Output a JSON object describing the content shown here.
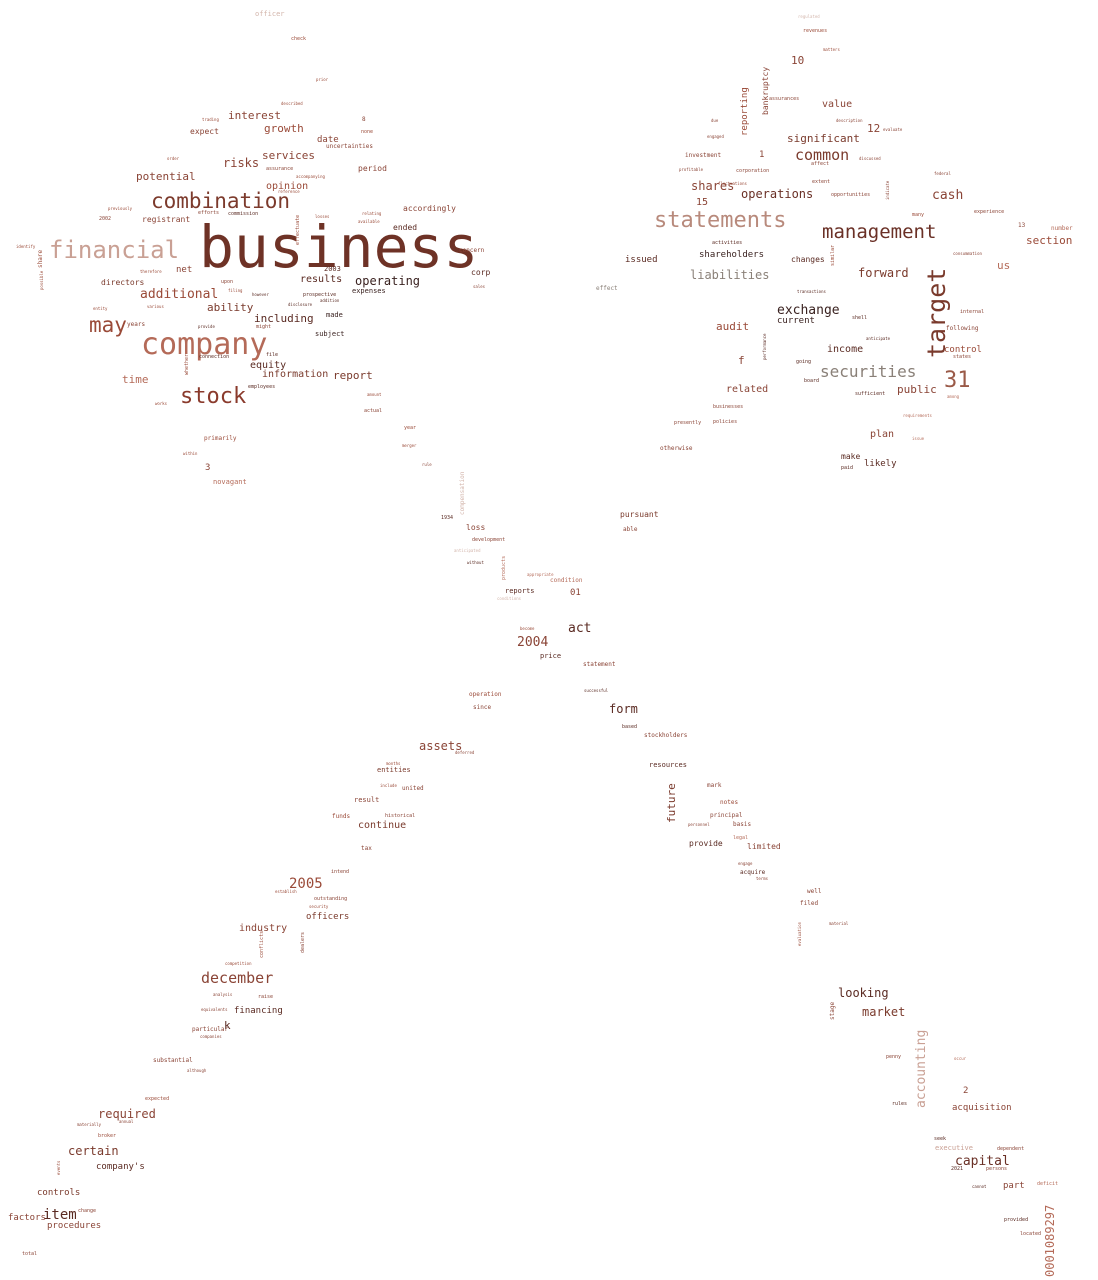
{
  "words": [
    {
      "text": "business",
      "color": "#6e3226"
    },
    {
      "text": "company",
      "color": "#b46a58"
    },
    {
      "text": "combination",
      "color": "#7c3a2c"
    },
    {
      "text": "financial",
      "color": "#c9a094"
    },
    {
      "text": "stock",
      "color": "#8a3a2c"
    },
    {
      "text": "may",
      "color": "#9a4a38"
    },
    {
      "text": "statements",
      "color": "#b88a7c"
    },
    {
      "text": "management",
      "color": "#6a3026"
    },
    {
      "text": "target",
      "color": "#7a3a2c"
    },
    {
      "text": "securities",
      "color": "#8a8078"
    },
    {
      "text": "31",
      "color": "#9a5a48"
    },
    {
      "text": "common",
      "color": "#7a3a2c"
    },
    {
      "text": "cash",
      "color": "#8a4436"
    },
    {
      "text": "additional",
      "color": "#9a4a38"
    },
    {
      "text": "operations",
      "color": "#6a3026"
    },
    {
      "text": "exchange",
      "color": "#3a2220"
    },
    {
      "text": "operating",
      "color": "#3a2220"
    },
    {
      "text": "december",
      "color": "#8a4436"
    },
    {
      "text": "2005",
      "color": "#9a4a38"
    },
    {
      "text": "item",
      "color": "#5a2a22"
    },
    {
      "text": "accounting",
      "color": "#c9a094"
    },
    {
      "text": "capital",
      "color": "#6a3026"
    },
    {
      "text": "0001089297",
      "color": "#b46a58"
    },
    {
      "text": "2004",
      "color": "#8a4436"
    },
    {
      "text": "act",
      "color": "#5a2a22"
    },
    {
      "text": "form",
      "color": "#5a2a22"
    },
    {
      "text": "market",
      "color": "#7a3a2c"
    },
    {
      "text": "looking",
      "color": "#5a2a22"
    },
    {
      "text": "certain",
      "color": "#7a3a2c"
    },
    {
      "text": "required",
      "color": "#8a4436"
    },
    {
      "text": "assets",
      "color": "#8a4436"
    },
    {
      "text": "future",
      "color": "#7a3a2c"
    },
    {
      "text": "liabilities",
      "color": "#8a8078"
    },
    {
      "text": "shares",
      "color": "#8a4436"
    },
    {
      "text": "forward",
      "color": "#7a3a2c"
    },
    {
      "text": "section",
      "color": "#9a4a38"
    },
    {
      "text": "interest",
      "color": "#8a4436"
    },
    {
      "text": "growth",
      "color": "#9a4a38"
    },
    {
      "text": "risks",
      "color": "#8a4436"
    },
    {
      "text": "services",
      "color": "#8a4436"
    },
    {
      "text": "potential",
      "color": "#8a4436"
    },
    {
      "text": "opinion",
      "color": "#9a4a38"
    },
    {
      "text": "time",
      "color": "#b46a58"
    },
    {
      "text": "ability",
      "color": "#7a3a2c"
    },
    {
      "text": "including",
      "color": "#5a2a22"
    },
    {
      "text": "results",
      "color": "#5a2a22"
    },
    {
      "text": "report",
      "color": "#7a3a2c"
    },
    {
      "text": "information",
      "color": "#7a3a2c"
    },
    {
      "text": "equity",
      "color": "#5a2a22"
    },
    {
      "text": "audit",
      "color": "#9a4a38"
    },
    {
      "text": "income",
      "color": "#5a2a22"
    },
    {
      "text": "public",
      "color": "#8a4436"
    },
    {
      "text": "value",
      "color": "#8a4436"
    },
    {
      "text": "significant",
      "color": "#7a3a2c"
    },
    {
      "text": "us",
      "color": "#b46a58"
    },
    {
      "text": "plan",
      "color": "#8a4436"
    },
    {
      "text": "control",
      "color": "#9a4a38"
    },
    {
      "text": "industry",
      "color": "#8a4436"
    },
    {
      "text": "continue",
      "color": "#7a3a2c"
    },
    {
      "text": "officers",
      "color": "#7a3a2c"
    },
    {
      "text": "acquisition",
      "color": "#8a4436"
    },
    {
      "text": "part",
      "color": "#8a4436"
    },
    {
      "text": "controls",
      "color": "#7a3a2c"
    },
    {
      "text": "factors",
      "color": "#8a4436"
    },
    {
      "text": "procedures",
      "color": "#8a4436"
    },
    {
      "text": "company's",
      "color": "#5a2a22"
    },
    {
      "text": "financing",
      "color": "#5a2a22"
    },
    {
      "text": "10",
      "color": "#8a4436"
    },
    {
      "text": "12",
      "color": "#8a4436"
    },
    {
      "text": "15",
      "color": "#8a4436"
    },
    {
      "text": "bankruptcy",
      "color": "#8a4436"
    },
    {
      "text": "reporting",
      "color": "#9a4a38"
    },
    {
      "text": "shareholders",
      "color": "#3a2220"
    },
    {
      "text": "related",
      "color": "#8a4436"
    },
    {
      "text": "likely",
      "color": "#5a2a22"
    },
    {
      "text": "make",
      "color": "#5a2a22"
    },
    {
      "text": "issued",
      "color": "#5a2a22"
    },
    {
      "text": "changes",
      "color": "#5a2a22"
    },
    {
      "text": "current",
      "color": "#3a2220"
    },
    {
      "text": "directors",
      "color": "#7a3a2c"
    },
    {
      "text": "net",
      "color": "#8a4436"
    },
    {
      "text": "registrant",
      "color": "#8a4436"
    },
    {
      "text": "expect",
      "color": "#8a4436"
    },
    {
      "text": "date",
      "color": "#8a4436"
    },
    {
      "text": "period",
      "color": "#8a4436"
    },
    {
      "text": "accordingly",
      "color": "#8a4436"
    },
    {
      "text": "ended",
      "color": "#5a2a22"
    },
    {
      "text": "corp",
      "color": "#5a2a22"
    },
    {
      "text": "2003",
      "color": "#5a2a22"
    },
    {
      "text": "expenses",
      "color": "#3a2220"
    },
    {
      "text": "subject",
      "color": "#3a2220"
    },
    {
      "text": "made",
      "color": "#3a2220"
    },
    {
      "text": "novagant",
      "color": "#b46a58"
    },
    {
      "text": "loss",
      "color": "#8a4436"
    },
    {
      "text": "pursuant",
      "color": "#7a3a2c"
    },
    {
      "text": "reports",
      "color": "#5a2a22"
    },
    {
      "text": "01",
      "color": "#8a4436"
    },
    {
      "text": "price",
      "color": "#5a2a22"
    },
    {
      "text": "entities",
      "color": "#7a3a2c"
    },
    {
      "text": "result",
      "color": "#8a4436"
    },
    {
      "text": "resources",
      "color": "#5a2a22"
    },
    {
      "text": "provide",
      "color": "#5a2a22"
    },
    {
      "text": "limited",
      "color": "#8a4436"
    },
    {
      "text": "executive",
      "color": "#c9a094"
    },
    {
      "text": "uncertainties",
      "color": "#8a4436"
    },
    {
      "text": "officer",
      "color": "#d2b4aa"
    },
    {
      "text": "effect",
      "color": "#8a8078"
    },
    {
      "text": "shell",
      "color": "#5a2a22"
    },
    {
      "text": "following",
      "color": "#8a4436"
    },
    {
      "text": "internal",
      "color": "#8a4436"
    },
    {
      "text": "number",
      "color": "#b46a58"
    },
    {
      "text": "investment",
      "color": "#8a4436"
    },
    {
      "text": "corporation",
      "color": "#8a4436"
    },
    {
      "text": "basis",
      "color": "#8a4436"
    },
    {
      "text": "notes",
      "color": "#9a4a38"
    },
    {
      "text": "mark",
      "color": "#8a4436"
    },
    {
      "text": "principal",
      "color": "#8a4436"
    },
    {
      "text": "acquire",
      "color": "#5a2a22"
    },
    {
      "text": "filed",
      "color": "#8a4436"
    },
    {
      "text": "well",
      "color": "#8a4436"
    },
    {
      "text": "stage",
      "color": "#8a4436"
    },
    {
      "text": "raise",
      "color": "#8a4436"
    },
    {
      "text": "particular",
      "color": "#8a4436"
    },
    {
      "text": "substantial",
      "color": "#8a4436"
    },
    {
      "text": "united",
      "color": "#8a4436"
    },
    {
      "text": "historical",
      "color": "#8a4436"
    },
    {
      "text": "funds",
      "color": "#9a4a38"
    },
    {
      "text": "tax",
      "color": "#8a4436"
    },
    {
      "text": "intend",
      "color": "#8a4436"
    },
    {
      "text": "stockholders",
      "color": "#8a4436"
    },
    {
      "text": "since",
      "color": "#8a4436"
    },
    {
      "text": "operation",
      "color": "#9a4a38"
    },
    {
      "text": "statement",
      "color": "#8a4436"
    },
    {
      "text": "able",
      "color": "#8a4436"
    },
    {
      "text": "development",
      "color": "#8a4436"
    },
    {
      "text": "condition",
      "color": "#b46a58"
    },
    {
      "text": "primarily",
      "color": "#9a4a38"
    },
    {
      "text": "concern",
      "color": "#8a4436"
    },
    {
      "text": "years",
      "color": "#8a4436"
    },
    {
      "text": "employees",
      "color": "#5a2a22"
    },
    {
      "text": "connection",
      "color": "#5a2a22"
    },
    {
      "text": "assurance",
      "color": "#8a4436"
    },
    {
      "text": "check",
      "color": "#9a4a38"
    },
    {
      "text": "described",
      "color": "#9a4a38"
    },
    {
      "text": "prior",
      "color": "#9a4a38"
    },
    {
      "text": "none",
      "color": "#9a4a38"
    },
    {
      "text": "commission",
      "color": "#5a2a22"
    },
    {
      "text": "efforts",
      "color": "#8a4436"
    },
    {
      "text": "upon",
      "color": "#8a4436"
    },
    {
      "text": "sales",
      "color": "#8a4436"
    },
    {
      "text": "year",
      "color": "#9a4a38"
    },
    {
      "text": "actual",
      "color": "#8a4436"
    },
    {
      "text": "amount",
      "color": "#9a4a38"
    },
    {
      "text": "otherwise",
      "color": "#8a4436"
    },
    {
      "text": "presently",
      "color": "#8a4436"
    },
    {
      "text": "businesses",
      "color": "#8a4436"
    },
    {
      "text": "policies",
      "color": "#8a4436"
    },
    {
      "text": "board",
      "color": "#5a2a22"
    },
    {
      "text": "going",
      "color": "#5a2a22"
    },
    {
      "text": "sufficient",
      "color": "#5a2a22"
    },
    {
      "text": "activities",
      "color": "#5a2a22"
    },
    {
      "text": "assurances",
      "color": "#8a4436"
    },
    {
      "text": "revenues",
      "color": "#9a4a38"
    },
    {
      "text": "opportunities",
      "color": "#8a4436"
    },
    {
      "text": "experience",
      "color": "#8a4436"
    },
    {
      "text": "states",
      "color": "#8a4436"
    },
    {
      "text": "many",
      "color": "#9a4a38"
    },
    {
      "text": "seek",
      "color": "#5a2a22"
    },
    {
      "text": "persons",
      "color": "#8a4436"
    },
    {
      "text": "dependent",
      "color": "#8a4436"
    },
    {
      "text": "deficit",
      "color": "#b46a58"
    },
    {
      "text": "provided",
      "color": "#5a2a22"
    },
    {
      "text": "located",
      "color": "#8a4436"
    },
    {
      "text": "rules",
      "color": "#5a2a22"
    },
    {
      "text": "penny",
      "color": "#8a4436"
    },
    {
      "text": "change",
      "color": "#8a4436"
    },
    {
      "text": "total",
      "color": "#8a4436"
    },
    {
      "text": "broker",
      "color": "#9a4a38"
    },
    {
      "text": "expected",
      "color": "#9a4a38"
    },
    {
      "text": "dealers",
      "color": "#8a4436"
    },
    {
      "text": "outstanding",
      "color": "#8a4436"
    },
    {
      "text": "conflicts",
      "color": "#9a4a38"
    },
    {
      "text": "compensation",
      "color": "#d2b4aa"
    },
    {
      "text": "products",
      "color": "#b46a58"
    },
    {
      "text": "whether",
      "color": "#9a4a38"
    },
    {
      "text": "share",
      "color": "#9a4a38"
    },
    {
      "text": "based",
      "color": "#5a2a22"
    },
    {
      "text": "2",
      "color": "#8a4436"
    },
    {
      "text": "3",
      "color": "#8a4436"
    },
    {
      "text": "f",
      "color": "#8a4436"
    },
    {
      "text": "k",
      "color": "#5a2a22"
    },
    {
      "text": "1",
      "color": "#8a4436"
    },
    {
      "text": "8",
      "color": "#8a4436"
    },
    {
      "text": "13",
      "color": "#8a4436"
    },
    {
      "text": "2002",
      "color": "#8a4436"
    },
    {
      "text": "2021",
      "color": "#5a2a22"
    },
    {
      "text": "1934",
      "color": "#5a2a22"
    },
    {
      "text": "effectuate",
      "color": "#9a4a38"
    },
    {
      "text": "prospective",
      "color": "#5a2a22"
    },
    {
      "text": "accompanying",
      "color": "#9a4a38"
    },
    {
      "text": "available",
      "color": "#9a4a38"
    },
    {
      "text": "losses",
      "color": "#9a4a38"
    },
    {
      "text": "relating",
      "color": "#9a4a38"
    },
    {
      "text": "due",
      "color": "#8a4436"
    },
    {
      "text": "engaged",
      "color": "#8a4436"
    },
    {
      "text": "profitable",
      "color": "#8a4436"
    },
    {
      "text": "affect",
      "color": "#8a4436"
    },
    {
      "text": "extent",
      "color": "#8a4436"
    },
    {
      "text": "discussed",
      "color": "#8a4436"
    },
    {
      "text": "description",
      "color": "#8a4436"
    },
    {
      "text": "evaluate",
      "color": "#8a4436"
    },
    {
      "text": "indicate",
      "color": "#8a4436"
    },
    {
      "text": "federal",
      "color": "#8a4436"
    },
    {
      "text": "consummation",
      "color": "#8a4436"
    },
    {
      "text": "anticipate",
      "color": "#5a2a22"
    },
    {
      "text": "among",
      "color": "#b46a58"
    },
    {
      "text": "requirements",
      "color": "#b46a58"
    },
    {
      "text": "issue",
      "color": "#b46a58"
    },
    {
      "text": "similar",
      "color": "#9a4a38"
    },
    {
      "text": "transactions",
      "color": "#5a2a22"
    },
    {
      "text": "performance",
      "color": "#5a2a22"
    },
    {
      "text": "paid",
      "color": "#5a2a22"
    },
    {
      "text": "legal",
      "color": "#b46a58"
    },
    {
      "text": "engage",
      "color": "#8a4436"
    },
    {
      "text": "terms",
      "color": "#8a4436"
    },
    {
      "text": "personnel",
      "color": "#8a4436"
    },
    {
      "text": "material",
      "color": "#8a4436"
    },
    {
      "text": "evaluation",
      "color": "#9a4a38"
    },
    {
      "text": "occur",
      "color": "#b46a58"
    },
    {
      "text": "cannot",
      "color": "#5a2a22"
    },
    {
      "text": "companies",
      "color": "#8a4436"
    },
    {
      "text": "although",
      "color": "#8a4436"
    },
    {
      "text": "analysis",
      "color": "#8a4436"
    },
    {
      "text": "equivalents",
      "color": "#8a4436"
    },
    {
      "text": "materially",
      "color": "#8a4436"
    },
    {
      "text": "annual",
      "color": "#8a4436"
    },
    {
      "text": "events",
      "color": "#9a4a38"
    },
    {
      "text": "competition",
      "color": "#9a4a38"
    },
    {
      "text": "security",
      "color": "#9a4a38"
    },
    {
      "text": "establish",
      "color": "#9a4a38"
    },
    {
      "text": "deferred",
      "color": "#8a4436"
    },
    {
      "text": "months",
      "color": "#9a4a38"
    },
    {
      "text": "include",
      "color": "#9a4a38"
    },
    {
      "text": "successful",
      "color": "#5a2a22"
    },
    {
      "text": "appropriate",
      "color": "#b46a58"
    },
    {
      "text": "merger",
      "color": "#9a4a38"
    },
    {
      "text": "rule",
      "color": "#8a4436"
    },
    {
      "text": "without",
      "color": "#5a2a22"
    },
    {
      "text": "conditions",
      "color": "#d2b4aa"
    },
    {
      "text": "anticipated",
      "color": "#d2b4aa"
    },
    {
      "text": "become",
      "color": "#9a4a38"
    },
    {
      "text": "within",
      "color": "#9a4a38"
    },
    {
      "text": "identify",
      "color": "#9a4a38"
    },
    {
      "text": "possible",
      "color": "#9a4a38"
    },
    {
      "text": "entity",
      "color": "#9a4a38"
    },
    {
      "text": "various",
      "color": "#9a4a38"
    },
    {
      "text": "works",
      "color": "#9a4a38"
    },
    {
      "text": "previously",
      "color": "#9a4a38"
    },
    {
      "text": "therefore",
      "color": "#9a4a38"
    },
    {
      "text": "however",
      "color": "#5a2a22"
    },
    {
      "text": "addition",
      "color": "#5a2a22"
    },
    {
      "text": "disclosure",
      "color": "#5a2a22"
    },
    {
      "text": "might",
      "color": "#8a4436"
    },
    {
      "text": "provide",
      "color": "#5a2a22"
    },
    {
      "text": "file",
      "color": "#5a2a22"
    },
    {
      "text": "trading",
      "color": "#9a4a38"
    },
    {
      "text": "filing",
      "color": "#9a4a38"
    },
    {
      "text": "reference",
      "color": "#9a4a38"
    },
    {
      "text": "order",
      "color": "#9a4a38"
    },
    {
      "text": "fluctuations",
      "color": "#9a4a38"
    },
    {
      "text": "matters",
      "color": "#9a4a38"
    },
    {
      "text": "regulated",
      "color": "#d2b4aa"
    }
  ]
}
